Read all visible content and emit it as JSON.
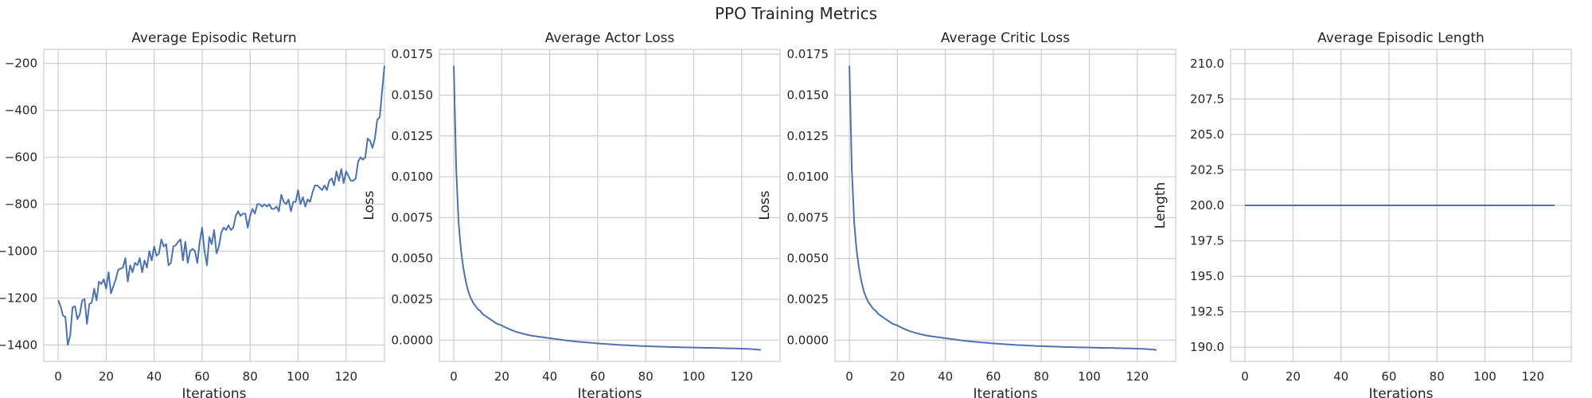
{
  "figure": {
    "title": "PPO Training Metrics"
  },
  "chart_data": [
    {
      "type": "line",
      "title": "Average Episodic Return",
      "xlabel": "Iterations",
      "ylabel": "",
      "xlim": [
        -6,
        136
      ],
      "ylim": [
        -1470,
        -140
      ],
      "xticks": [
        0,
        20,
        40,
        60,
        80,
        100,
        120
      ],
      "yticks": [
        -1400,
        -1200,
        -1000,
        -800,
        -600,
        -400,
        -200
      ],
      "grid": true,
      "color": "#4c72b0",
      "series": [
        {
          "values": [
            -1210,
            -1235,
            -1275,
            -1280,
            -1400,
            -1360,
            -1240,
            -1235,
            -1290,
            -1270,
            -1210,
            -1205,
            -1310,
            -1225,
            -1220,
            -1160,
            -1210,
            -1130,
            -1140,
            -1120,
            -1160,
            -1090,
            -1180,
            -1150,
            -1120,
            -1080,
            -1075,
            -1070,
            -1030,
            -1130,
            -1060,
            -1090,
            -1050,
            -1060,
            -1030,
            -1090,
            -1040,
            -1070,
            -1000,
            -1040,
            -980,
            -1020,
            -1010,
            -950,
            -980,
            -970,
            -1060,
            -1050,
            -980,
            -975,
            -960,
            -950,
            -1040,
            -960,
            -1050,
            -1000,
            -990,
            -1000,
            -1050,
            -960,
            -900,
            -1000,
            -1060,
            -940,
            -970,
            -910,
            -1010,
            -980,
            -920,
            -900,
            -910,
            -890,
            -910,
            -900,
            -850,
            -830,
            -850,
            -840,
            -840,
            -900,
            -850,
            -820,
            -840,
            -800,
            -800,
            -810,
            -800,
            -810,
            -800,
            -820,
            -820,
            -810,
            -830,
            -760,
            -790,
            -800,
            -780,
            -830,
            -790,
            -790,
            -740,
            -800,
            -770,
            -810,
            -780,
            -790,
            -750,
            -720,
            -720,
            -730,
            -740,
            -720,
            -740,
            -700,
            -690,
            -720,
            -660,
            -700,
            -650,
            -710,
            -660,
            -680,
            -700,
            -700,
            -690,
            -620,
            -600,
            -610,
            -600,
            -520,
            -530,
            -560,
            -520,
            -440,
            -430,
            -320,
            -210
          ]
        }
      ]
    },
    {
      "type": "line",
      "title": "Average Actor Loss",
      "xlabel": "Iterations",
      "ylabel": "Loss",
      "xlim": [
        -6,
        136
      ],
      "ylim": [
        -0.0013,
        0.0178
      ],
      "xticks": [
        0,
        20,
        40,
        60,
        80,
        100,
        120
      ],
      "yticks": [
        "0.0000",
        "0.0025",
        "0.0050",
        "0.0075",
        "0.0100",
        "0.0125",
        "0.0150",
        "0.0175"
      ],
      "grid": true,
      "color": "#4c72b0",
      "series": [
        {
          "values": [
            0.0168,
            0.0105,
            0.0072,
            0.0055,
            0.0044,
            0.0036,
            0.003,
            0.0026,
            0.0023,
            0.0021,
            0.0019,
            0.0018,
            0.0016,
            0.0015,
            0.0014,
            0.0013,
            0.0012,
            0.0011,
            0.001,
            0.00095,
            0.0009,
            0.00082,
            0.00075,
            0.00068,
            0.00062,
            0.00056,
            0.00051,
            0.00047,
            0.00043,
            0.00039,
            0.00035,
            0.00032,
            0.00029,
            0.00026,
            0.00024,
            0.00022,
            0.0002,
            0.00018,
            0.00016,
            0.00014,
            0.00012,
            0.0001,
            8e-05,
            6e-05,
            4e-05,
            2e-05,
            0,
            -2e-05,
            -4e-05,
            -5e-05,
            -7e-05,
            -8e-05,
            -0.0001,
            -0.00011,
            -0.00012,
            -0.00014,
            -0.00015,
            -0.00016,
            -0.00017,
            -0.00019,
            -0.0002,
            -0.00021,
            -0.00022,
            -0.00023,
            -0.00024,
            -0.00025,
            -0.00026,
            -0.00027,
            -0.00028,
            -0.00029,
            -0.0003,
            -0.00031,
            -0.00031,
            -0.00032,
            -0.00033,
            -0.00034,
            -0.00034,
            -0.00035,
            -0.00036,
            -0.00036,
            -0.00037,
            -0.00037,
            -0.00038,
            -0.00038,
            -0.00039,
            -0.00039,
            -0.0004,
            -0.0004,
            -0.00041,
            -0.00041,
            -0.00042,
            -0.00042,
            -0.00042,
            -0.00043,
            -0.00043,
            -0.00044,
            -0.00044,
            -0.00044,
            -0.00045,
            -0.00045,
            -0.00045,
            -0.00046,
            -0.00046,
            -0.00046,
            -0.00047,
            -0.00047,
            -0.00047,
            -0.00047,
            -0.00048,
            -0.00048,
            -0.00048,
            -0.00049,
            -0.00049,
            -0.00049,
            -0.0005,
            -0.0005,
            -0.0005,
            -0.00051,
            -0.00051,
            -0.00052,
            -0.00052,
            -0.00053,
            -0.00053,
            -0.00054,
            -0.00055,
            -0.00056,
            -0.00057,
            -0.00058,
            -0.0006
          ]
        }
      ]
    },
    {
      "type": "line",
      "title": "Average Critic Loss",
      "xlabel": "Iterations",
      "ylabel": "Loss",
      "xlim": [
        -6,
        136
      ],
      "ylim": [
        -0.0013,
        0.0178
      ],
      "xticks": [
        0,
        20,
        40,
        60,
        80,
        100,
        120
      ],
      "yticks": [
        "0.0000",
        "0.0025",
        "0.0050",
        "0.0075",
        "0.0100",
        "0.0125",
        "0.0150",
        "0.0175"
      ],
      "grid": true,
      "color": "#4c72b0",
      "series": [
        {
          "values": [
            0.0168,
            0.0105,
            0.0072,
            0.0055,
            0.0044,
            0.0036,
            0.003,
            0.0026,
            0.0023,
            0.0021,
            0.0019,
            0.0018,
            0.0016,
            0.0015,
            0.0014,
            0.0013,
            0.0012,
            0.0011,
            0.001,
            0.00095,
            0.0009,
            0.00082,
            0.00075,
            0.00068,
            0.00062,
            0.00056,
            0.00051,
            0.00047,
            0.00043,
            0.00039,
            0.00035,
            0.00032,
            0.00029,
            0.00026,
            0.00024,
            0.00022,
            0.0002,
            0.00018,
            0.00016,
            0.00014,
            0.00012,
            0.0001,
            8e-05,
            6e-05,
            4e-05,
            2e-05,
            0,
            -2e-05,
            -4e-05,
            -5e-05,
            -7e-05,
            -8e-05,
            -0.0001,
            -0.00011,
            -0.00012,
            -0.00014,
            -0.00015,
            -0.00016,
            -0.00017,
            -0.00019,
            -0.0002,
            -0.00021,
            -0.00022,
            -0.00023,
            -0.00024,
            -0.00025,
            -0.00026,
            -0.00027,
            -0.00028,
            -0.00029,
            -0.0003,
            -0.00031,
            -0.00031,
            -0.00032,
            -0.00033,
            -0.00034,
            -0.00034,
            -0.00035,
            -0.00036,
            -0.00036,
            -0.00037,
            -0.00037,
            -0.00038,
            -0.00038,
            -0.00039,
            -0.00039,
            -0.0004,
            -0.0004,
            -0.00041,
            -0.00041,
            -0.00042,
            -0.00042,
            -0.00042,
            -0.00043,
            -0.00043,
            -0.00044,
            -0.00044,
            -0.00044,
            -0.00045,
            -0.00045,
            -0.00045,
            -0.00046,
            -0.00046,
            -0.00046,
            -0.00047,
            -0.00047,
            -0.00047,
            -0.00047,
            -0.00048,
            -0.00048,
            -0.00048,
            -0.00049,
            -0.00049,
            -0.00049,
            -0.0005,
            -0.0005,
            -0.0005,
            -0.00051,
            -0.00051,
            -0.00052,
            -0.00052,
            -0.00053,
            -0.00053,
            -0.00054,
            -0.00055,
            -0.00056,
            -0.00057,
            -0.00058,
            -0.0006
          ]
        }
      ]
    },
    {
      "type": "line",
      "title": "Average Episodic Length",
      "xlabel": "Iterations",
      "ylabel": "Length",
      "xlim": [
        -6,
        136
      ],
      "ylim": [
        189.0,
        211.0
      ],
      "xticks": [
        0,
        20,
        40,
        60,
        80,
        100,
        120
      ],
      "yticks": [
        "190.0",
        "192.5",
        "195.0",
        "197.5",
        "200.0",
        "202.5",
        "205.0",
        "207.5",
        "210.0"
      ],
      "grid": true,
      "color": "#4c72b0",
      "series": [
        {
          "x": [
            0,
            129
          ],
          "values": [
            200.0,
            200.0
          ]
        }
      ]
    }
  ]
}
